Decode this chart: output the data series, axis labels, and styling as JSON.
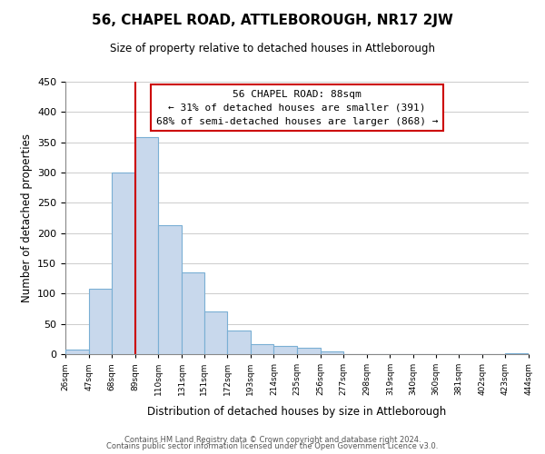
{
  "title": "56, CHAPEL ROAD, ATTLEBOROUGH, NR17 2JW",
  "subtitle": "Size of property relative to detached houses in Attleborough",
  "xlabel": "Distribution of detached houses by size in Attleborough",
  "ylabel": "Number of detached properties",
  "bar_color": "#c8d8ec",
  "bar_edge_color": "#7aafd4",
  "annotation_title": "56 CHAPEL ROAD: 88sqm",
  "annotation_line1": "← 31% of detached houses are smaller (391)",
  "annotation_line2": "68% of semi-detached houses are larger (868) →",
  "property_line_x": 89,
  "property_line_color": "#cc0000",
  "bin_edges": [
    26,
    47,
    68,
    89,
    110,
    131,
    151,
    172,
    193,
    214,
    235,
    256,
    277,
    298,
    319,
    340,
    360,
    381,
    402,
    423,
    444
  ],
  "bin_counts": [
    8,
    108,
    300,
    358,
    213,
    135,
    70,
    39,
    16,
    13,
    10,
    5,
    0,
    0,
    0,
    0,
    0,
    0,
    0,
    2
  ],
  "tick_labels": [
    "26sqm",
    "47sqm",
    "68sqm",
    "89sqm",
    "110sqm",
    "131sqm",
    "151sqm",
    "172sqm",
    "193sqm",
    "214sqm",
    "235sqm",
    "256sqm",
    "277sqm",
    "298sqm",
    "319sqm",
    "340sqm",
    "360sqm",
    "381sqm",
    "402sqm",
    "423sqm",
    "444sqm"
  ],
  "ylim": [
    0,
    450
  ],
  "yticks": [
    0,
    50,
    100,
    150,
    200,
    250,
    300,
    350,
    400,
    450
  ],
  "footer_line1": "Contains HM Land Registry data © Crown copyright and database right 2024.",
  "footer_line2": "Contains public sector information licensed under the Open Government Licence v3.0.",
  "background_color": "#ffffff",
  "grid_color": "#cccccc",
  "annotation_box_color": "#ffffff",
  "annotation_box_edge": "#cc0000"
}
